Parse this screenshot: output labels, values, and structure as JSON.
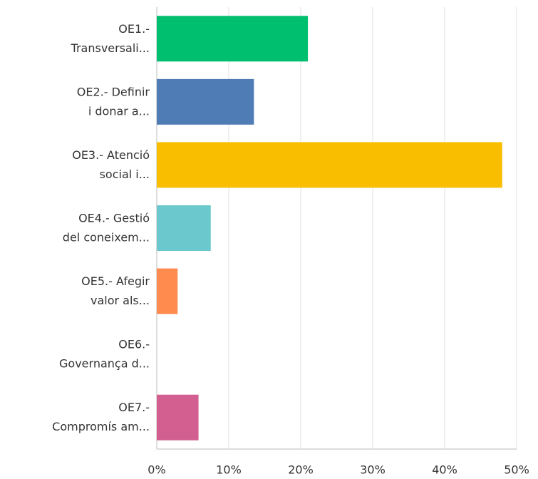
{
  "chart_data": {
    "type": "bar",
    "orientation": "horizontal",
    "categories": [
      [
        "OE1.-",
        "Transversali..."
      ],
      [
        "OE2.- Definir",
        "i donar a..."
      ],
      [
        "OE3.- Atenció",
        "social i..."
      ],
      [
        "OE4.- Gestió",
        "del coneixem..."
      ],
      [
        "OE5.- Afegir",
        "valor als..."
      ],
      [
        "OE6.-",
        "Governança d..."
      ],
      [
        "OE7.-",
        "Compromís am..."
      ]
    ],
    "values": [
      21,
      13.5,
      48,
      7.5,
      2.9,
      0,
      5.8
    ],
    "colors": [
      "#00bf6f",
      "#507cb6",
      "#f9be00",
      "#6bc8cd",
      "#ff8b4f",
      "#7d5ca6",
      "#d25f90"
    ],
    "xlim": [
      0,
      50
    ],
    "xticks": [
      {
        "value": 0,
        "label": "0%"
      },
      {
        "value": 10,
        "label": "10%"
      },
      {
        "value": 20,
        "label": "20%"
      },
      {
        "value": 30,
        "label": "30%"
      },
      {
        "value": 40,
        "label": "40%"
      },
      {
        "value": 50,
        "label": "50%"
      }
    ],
    "grid": true
  }
}
